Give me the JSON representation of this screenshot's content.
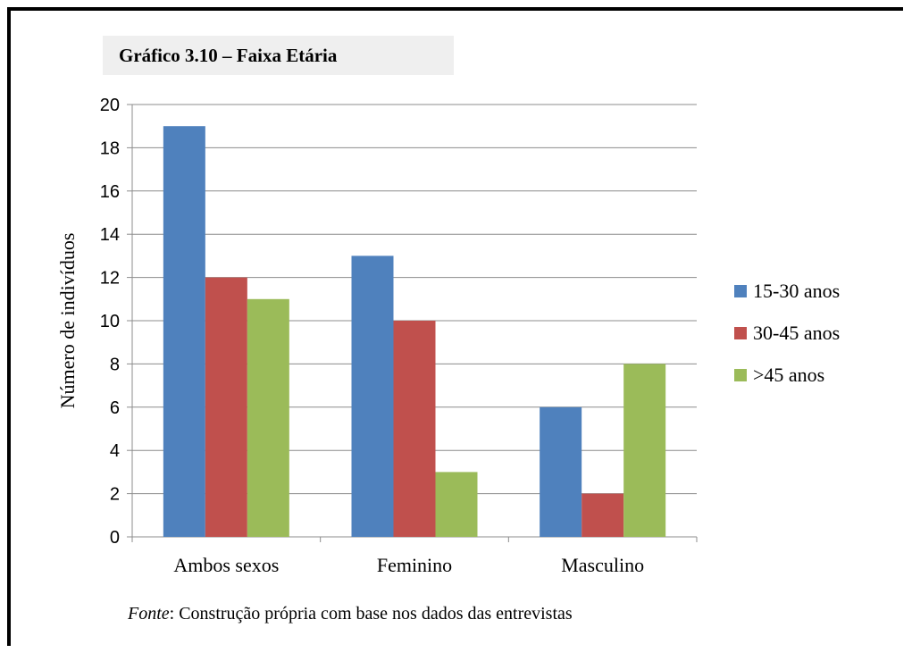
{
  "chart_data": {
    "type": "bar",
    "title": "Gráfico 3.10 – Faixa Etária",
    "ylabel": "Número de indivíduos",
    "xlabel": "",
    "categories": [
      "Ambos sexos",
      "Feminino",
      "Masculino"
    ],
    "ylim": [
      0,
      20
    ],
    "yticks": [
      "0",
      "2",
      "4",
      "6",
      "8",
      "10",
      "12",
      "14",
      "16",
      "18",
      "20"
    ],
    "grid": true,
    "legend_position": "right",
    "series": [
      {
        "name": "15-30 anos",
        "values": [
          19,
          13,
          6
        ],
        "color": "#4f81bd"
      },
      {
        "name": "30-45 anos",
        "values": [
          12,
          10,
          2
        ],
        "color": "#c0504d"
      },
      {
        "name": ">45 anos",
        "values": [
          11,
          3,
          8
        ],
        "color": "#9bbb59"
      }
    ]
  },
  "source": {
    "label": "Fonte",
    "text": ": Construção própria com base nos dados das entrevistas"
  }
}
